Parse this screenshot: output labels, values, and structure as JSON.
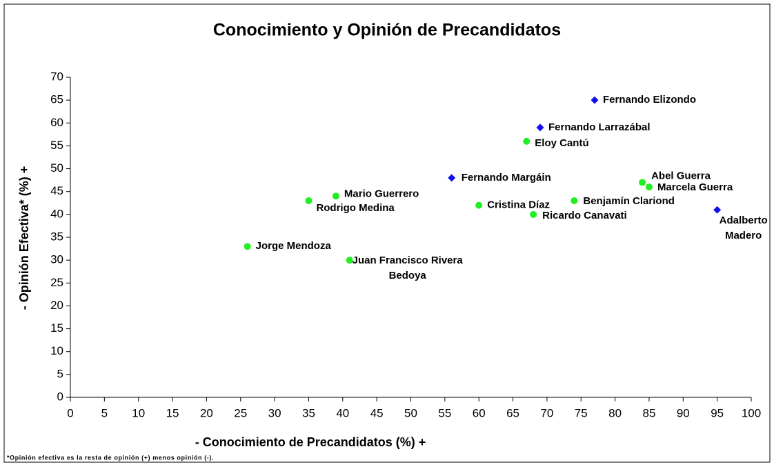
{
  "chart_data": {
    "type": "scatter",
    "title": "Conocimiento y Opinión de Precandidatos",
    "x_label": "- Conocimiento de Precandidatos (%) +",
    "y_label": "- Opinión Efectiva* (%) +",
    "footnote": "*Opinión efectiva es la resta de opinión (+) menos opinión (-).",
    "xlim": [
      0,
      100
    ],
    "ylim": [
      0,
      70
    ],
    "xticks": [
      0,
      5,
      10,
      15,
      20,
      25,
      30,
      35,
      40,
      45,
      50,
      55,
      60,
      65,
      70,
      75,
      80,
      85,
      90,
      95,
      100
    ],
    "yticks": [
      0,
      5,
      10,
      15,
      20,
      25,
      30,
      35,
      40,
      45,
      50,
      55,
      60,
      65,
      70
    ],
    "grid": false,
    "series": [
      {
        "color": "#22ee22",
        "marker": "circle",
        "x": [
          26,
          35,
          39,
          41,
          60,
          67,
          68,
          74,
          84,
          85
        ],
        "values": [
          33,
          43,
          44,
          30,
          42,
          56,
          40,
          43,
          47,
          46
        ],
        "labels": [
          [
            "Jorge Mendoza"
          ],
          [
            "Rodrigo Medina"
          ],
          [
            "Mario Guerrero"
          ],
          [
            "Juan Francisco Rivera",
            "Bedoya"
          ],
          [
            "Cristina Díaz"
          ],
          [
            "Eloy Cantú"
          ],
          [
            "Ricardo Canavati"
          ],
          [
            "Benjamín Clariond"
          ],
          [
            "Abel Guerra"
          ],
          [
            "Marcela Guerra"
          ]
        ]
      },
      {
        "color": "#1010ee",
        "marker": "diamond",
        "x": [
          77,
          69,
          56,
          95
        ],
        "values": [
          65,
          59,
          48,
          41
        ],
        "labels": [
          [
            "Fernando Elizondo"
          ],
          [
            "Fernando Larrazábal"
          ],
          [
            "Fernando Margáin"
          ],
          [
            "Adalberto",
            "Madero"
          ]
        ]
      }
    ]
  }
}
